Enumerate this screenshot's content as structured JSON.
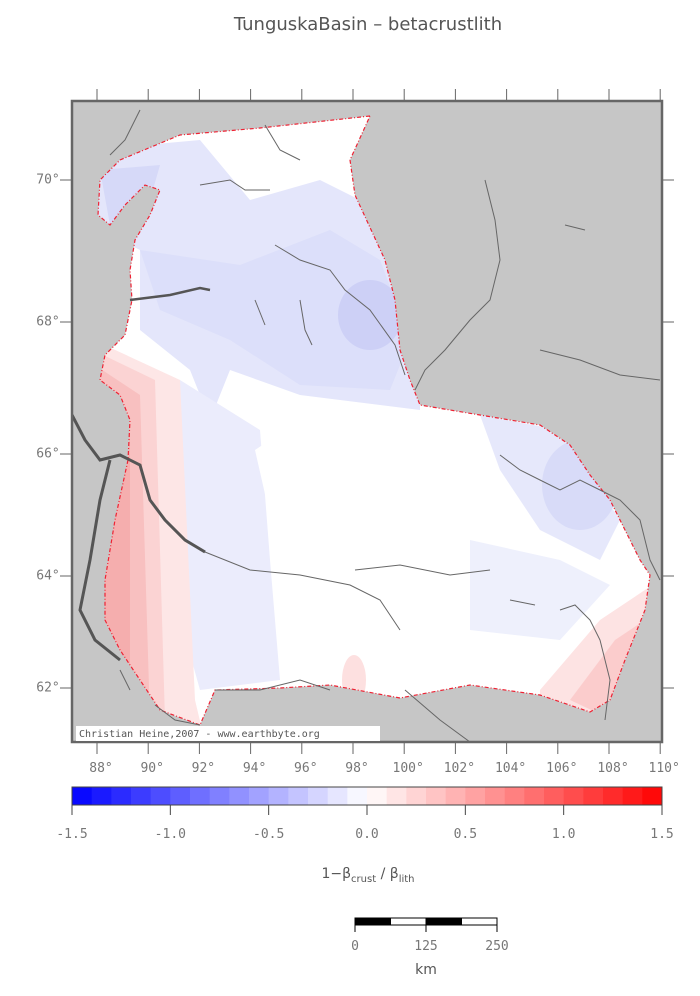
{
  "map": {
    "title": "TunguskaBasin – betacrustlith",
    "credit": "Christian Heine,2007 - www.earthbyte.org",
    "lat_ticks": [
      {
        "value": 70,
        "label": "70°"
      },
      {
        "value": 68,
        "label": "68°"
      },
      {
        "value": 66,
        "label": "66°"
      },
      {
        "value": 64,
        "label": "64°"
      },
      {
        "value": 62,
        "label": "62°"
      }
    ],
    "lon_ticks": [
      {
        "value": 88,
        "label": "88°"
      },
      {
        "value": 90,
        "label": "90°"
      },
      {
        "value": 92,
        "label": "92°"
      },
      {
        "value": 94,
        "label": "94°"
      },
      {
        "value": 96,
        "label": "96°"
      },
      {
        "value": 98,
        "label": "98°"
      },
      {
        "value": 100,
        "label": "100°"
      },
      {
        "value": 102,
        "label": "102°"
      },
      {
        "value": 104,
        "label": "104°"
      },
      {
        "value": 106,
        "label": "106°"
      },
      {
        "value": 108,
        "label": "108°"
      },
      {
        "value": 110,
        "label": "110°"
      }
    ],
    "colorbar": {
      "lim": [
        -1.5,
        1.5
      ],
      "ticks": [
        -1.5,
        {
          "value": -1,
          "label": "-1.0"
        },
        -0.5,
        {
          "value": 0,
          "label": "0.0"
        },
        0.5,
        {
          "value": 1,
          "label": "1.0"
        },
        1.5
      ],
      "colors": [
        "#0000ff",
        "#ffffff",
        "#ff0000"
      ],
      "label": {
        "main": "1−β",
        "sub1": "crust",
        "mid": " / β",
        "sub2": "lith"
      }
    },
    "scale_bar": {
      "ticks": [
        0,
        125,
        250
      ],
      "unit": "km"
    }
  }
}
